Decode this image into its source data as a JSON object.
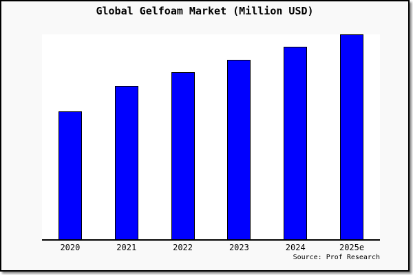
{
  "window": {
    "background_color": "#f9f9f9",
    "frame_border_color": "#000000",
    "plot_background_color": "#ffffff"
  },
  "chart_data": {
    "type": "bar",
    "title": "Global Gelfoam Market (Million USD)",
    "categories": [
      "2020",
      "2021",
      "2022",
      "2023",
      "2024",
      "2025e"
    ],
    "values": [
      62.5,
      75,
      81.5,
      87.5,
      94,
      100
    ],
    "values_note": "y-axis shows no tick labels or gridlines; values estimated from bar heights relative to tallest bar (2025e = 100)",
    "xlabel": "",
    "ylabel": "",
    "ylim": [
      0,
      100
    ],
    "grid": false,
    "legend": "none",
    "bar_color": "#0000ff",
    "bar_border_color": "#000000",
    "annotations": [
      {
        "text": "Source: Prof Research",
        "position": "bottom-right"
      }
    ]
  }
}
